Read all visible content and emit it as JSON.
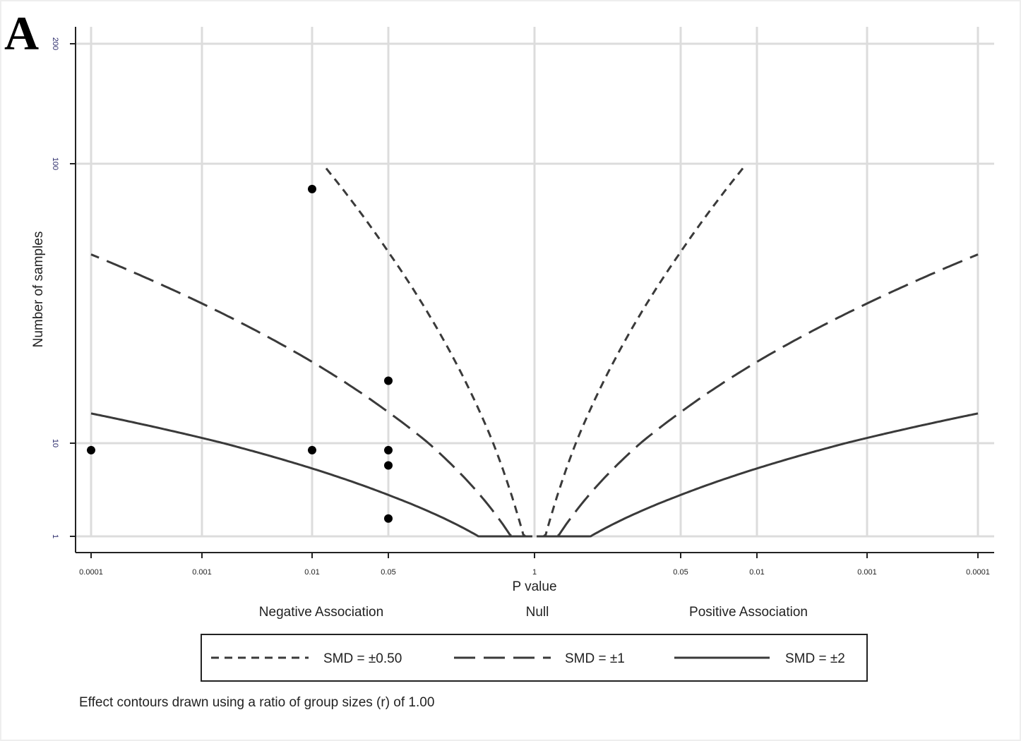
{
  "panel_label": "A",
  "colors": {
    "grid": "#dcdcdc",
    "axis": "#222222",
    "contour": "#3a3a3a",
    "points": "#000000",
    "ytick_text": "#2a2a6a"
  },
  "chart_data": {
    "type": "scatter",
    "xlabel": "P value",
    "ylabel": "Number of samples",
    "x_scale": "two-sided log10 p-value (negative left, positive right)",
    "y_scale": "sqrt",
    "ylim": [
      1,
      200
    ],
    "grid": true,
    "x_ticks": [
      {
        "side": "negative",
        "p": 0.0001,
        "label": "0.0001"
      },
      {
        "side": "negative",
        "p": 0.001,
        "label": "0.001"
      },
      {
        "side": "negative",
        "p": 0.01,
        "label": "0.01"
      },
      {
        "side": "negative",
        "p": 0.05,
        "label": "0.05"
      },
      {
        "side": "null",
        "p": 1,
        "label": "1"
      },
      {
        "side": "positive",
        "p": 0.05,
        "label": "0.05"
      },
      {
        "side": "positive",
        "p": 0.01,
        "label": "0.01"
      },
      {
        "side": "positive",
        "p": 0.001,
        "label": "0.001"
      },
      {
        "side": "positive",
        "p": 0.0001,
        "label": "0.0001"
      }
    ],
    "y_ticks": [
      {
        "value": 1,
        "label": "1"
      },
      {
        "value": 10,
        "label": "10"
      },
      {
        "value": 100,
        "label": "100"
      },
      {
        "value": 200,
        "label": "200"
      }
    ],
    "regions": [
      {
        "label": "Negative Association"
      },
      {
        "label": "Null"
      },
      {
        "label": "Positive Association"
      }
    ],
    "points": [
      {
        "side": "negative",
        "p": 0.0001,
        "n": 9
      },
      {
        "side": "negative",
        "p": 0.01,
        "n": 88
      },
      {
        "side": "negative",
        "p": 0.01,
        "n": 9
      },
      {
        "side": "negative",
        "p": 0.05,
        "n": 22
      },
      {
        "side": "negative",
        "p": 0.05,
        "n": 9
      },
      {
        "side": "negative",
        "p": 0.05,
        "n": 7
      },
      {
        "side": "negative",
        "p": 0.05,
        "n": 2
      }
    ],
    "contours": [
      {
        "name": "SMD = ±0.50",
        "smd": 0.5,
        "dash": "short"
      },
      {
        "name": "SMD = ±1",
        "smd": 1,
        "dash": "long"
      },
      {
        "name": "SMD = ±2",
        "smd": 2,
        "dash": "solid"
      }
    ],
    "legend_position": "bottom",
    "note": "Effect contours drawn using a ratio of group sizes (r) of 1.00"
  }
}
